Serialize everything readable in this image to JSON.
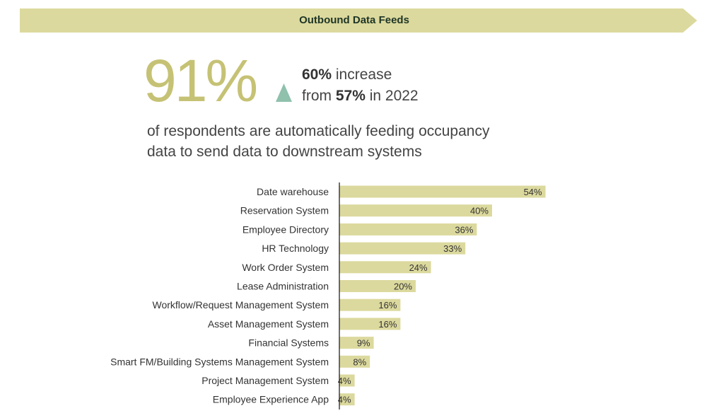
{
  "banner": {
    "title": "Outbound Data Feeds",
    "color": "#dcd99e"
  },
  "headline": {
    "stat": "91%",
    "change_value": "60%",
    "change_text": "increase",
    "from_prefix": "from",
    "from_value": "57%",
    "from_suffix": "in 2022",
    "trend_icon": "triangle-up-icon",
    "trend_color": "#8fc1ad",
    "description_line1": "of respondents are automatically feeding occupancy",
    "description_line2": "data to send data to downstream systems"
  },
  "chart_data": {
    "type": "bar",
    "orientation": "horizontal",
    "categories": [
      "Date warehouse",
      "Reservation System",
      "Employee Directory",
      "HR Technology",
      "Work Order System",
      "Lease Administration",
      "Workflow/Request Management System",
      "Asset Management System",
      "Financial Systems",
      "Smart FM/Building Systems Management System",
      "Project Management System",
      "Employee Experience App"
    ],
    "values": [
      54,
      40,
      36,
      33,
      24,
      20,
      16,
      16,
      9,
      8,
      4,
      4
    ],
    "data_labels": [
      "54%",
      "40%",
      "36%",
      "33%",
      "24%",
      "20%",
      "16%",
      "16%",
      "9%",
      "8%",
      "4%",
      "4%"
    ],
    "unit": "%",
    "bar_color": "#dcd99e",
    "grid": false
  }
}
